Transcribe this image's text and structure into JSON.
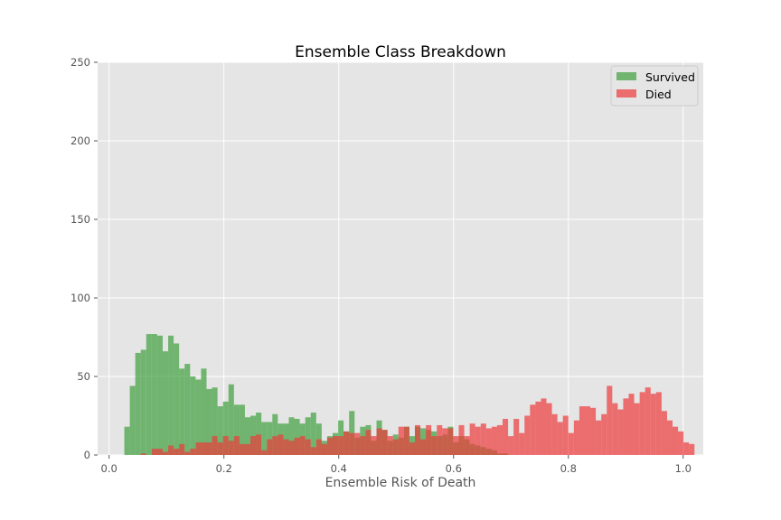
{
  "chart_data": {
    "type": "histogram",
    "title": "Ensemble Class Breakdown",
    "xlabel": "Ensemble Risk of Death",
    "ylabel": "",
    "xlim": [
      -0.02,
      1.035
    ],
    "ylim": [
      0,
      250
    ],
    "xticks": [
      "0.0",
      "0.2",
      "0.4",
      "0.6",
      "0.8",
      "1.0"
    ],
    "xtick_values": [
      0.0,
      0.2,
      0.4,
      0.6,
      0.8,
      1.0
    ],
    "yticks": [
      "0",
      "50",
      "100",
      "150",
      "200",
      "250"
    ],
    "ytick_values": [
      0,
      50,
      100,
      150,
      200,
      250
    ],
    "grid": true,
    "legend_position": "top-right",
    "background_color": "#e5e5e5",
    "bin_start": 0.0265,
    "bin_width": 0.00955,
    "series": [
      {
        "name": "Survived",
        "color": "#3f9f3f",
        "opacity": 0.7,
        "values": [
          18,
          44,
          65,
          67,
          77,
          77,
          76,
          66,
          76,
          71,
          55,
          58,
          50,
          48,
          55,
          42,
          43,
          31,
          34,
          45,
          32,
          32,
          24,
          25,
          27,
          21,
          21,
          26,
          20,
          20,
          24,
          23,
          20,
          24,
          27,
          20,
          9,
          12,
          14,
          22,
          15,
          28,
          11,
          18,
          19,
          9,
          22,
          16,
          9,
          13,
          11,
          18,
          12,
          18,
          17,
          16,
          15,
          12,
          13,
          18,
          8,
          12,
          10,
          7,
          6,
          5,
          4,
          3,
          1,
          1,
          0,
          0,
          0,
          0,
          0,
          0,
          0,
          0,
          0,
          0,
          0,
          0,
          0,
          0,
          0,
          0,
          0,
          0,
          0,
          0,
          0,
          0,
          0,
          0,
          0,
          0,
          0,
          0,
          0,
          0
        ]
      },
      {
        "name": "Died",
        "color": "#ee3b3b",
        "opacity": 0.7,
        "values": [
          0,
          0,
          0,
          1,
          0,
          4,
          4,
          2,
          6,
          4,
          7,
          2,
          4,
          8,
          8,
          8,
          12,
          8,
          12,
          9,
          12,
          7,
          7,
          12,
          13,
          3,
          10,
          12,
          13,
          10,
          9,
          11,
          12,
          10,
          5,
          10,
          7,
          11,
          12,
          12,
          15,
          14,
          14,
          12,
          16,
          12,
          17,
          16,
          12,
          10,
          18,
          18,
          8,
          19,
          10,
          19,
          12,
          19,
          17,
          17,
          12,
          19,
          12,
          20,
          18,
          20,
          17,
          18,
          19,
          23,
          12,
          23,
          14,
          25,
          32,
          34,
          36,
          33,
          26,
          21,
          25,
          14,
          22,
          31,
          31,
          30,
          22,
          26,
          44,
          33,
          29,
          36,
          39,
          33,
          40,
          43,
          39,
          40,
          28,
          22,
          18,
          15,
          8,
          7
        ]
      }
    ]
  }
}
